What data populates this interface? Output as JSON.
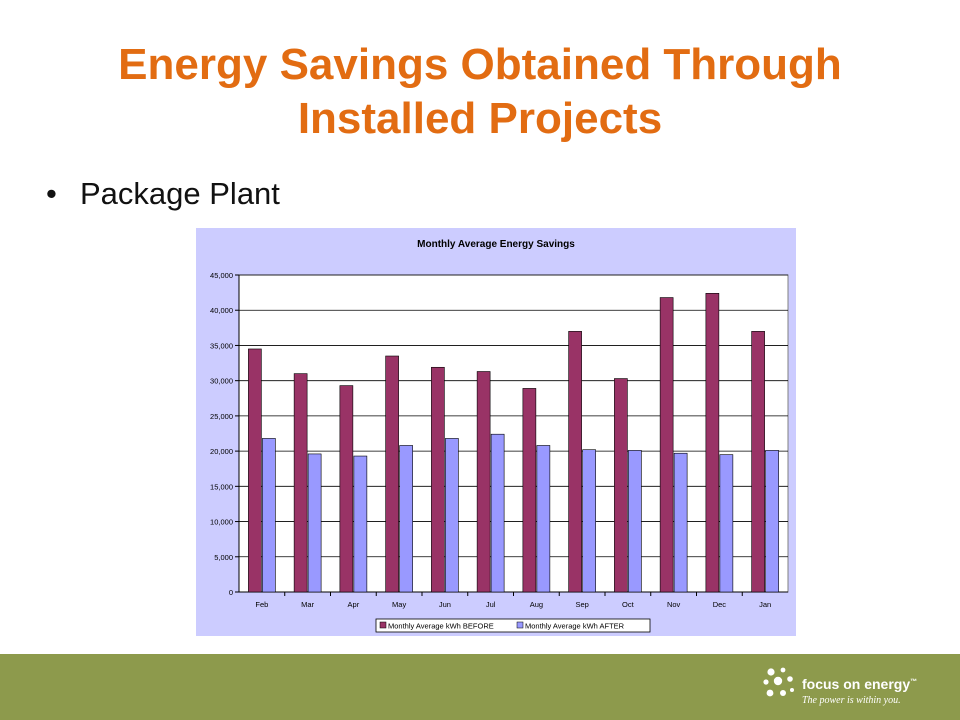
{
  "slide": {
    "title_line1": "Energy Savings Obtained Through",
    "title_line2": "Installed Projects",
    "bullet": "Package Plant"
  },
  "chart_data": {
    "type": "bar",
    "title": "Monthly Average Energy Savings",
    "categories": [
      "Feb",
      "Mar",
      "Apr",
      "May",
      "Jun",
      "Jul",
      "Aug",
      "Sep",
      "Oct",
      "Nov",
      "Dec",
      "Jan"
    ],
    "series": [
      {
        "name": "Monthly Average kWh BEFORE",
        "color": "#993366",
        "values": [
          34500,
          31000,
          29300,
          33500,
          31900,
          31300,
          28900,
          37000,
          30300,
          41800,
          42400,
          37000
        ]
      },
      {
        "name": "Monthly Average kWh AFTER",
        "color": "#9999ff",
        "values": [
          21800,
          19600,
          19300,
          20800,
          21800,
          22400,
          20800,
          20200,
          20100,
          19700,
          19500,
          20100
        ]
      }
    ],
    "yticks": [
      "0",
      "5,000",
      "10,000",
      "15,000",
      "20,000",
      "25,000",
      "30,000",
      "35,000",
      "40,000",
      "45,000"
    ],
    "ylim": [
      0,
      45000
    ],
    "grid": true,
    "legend_position": "bottom",
    "xlabel": "",
    "ylabel": ""
  },
  "footer": {
    "brand": "focus on energy",
    "trademark": "™",
    "tagline": "The power is within you."
  },
  "colors": {
    "title": "#e26c12",
    "footer": "#8d9a4c",
    "chart_bg": "#ccccff"
  },
  "icons": {
    "logo": "dots-cluster-icon"
  }
}
